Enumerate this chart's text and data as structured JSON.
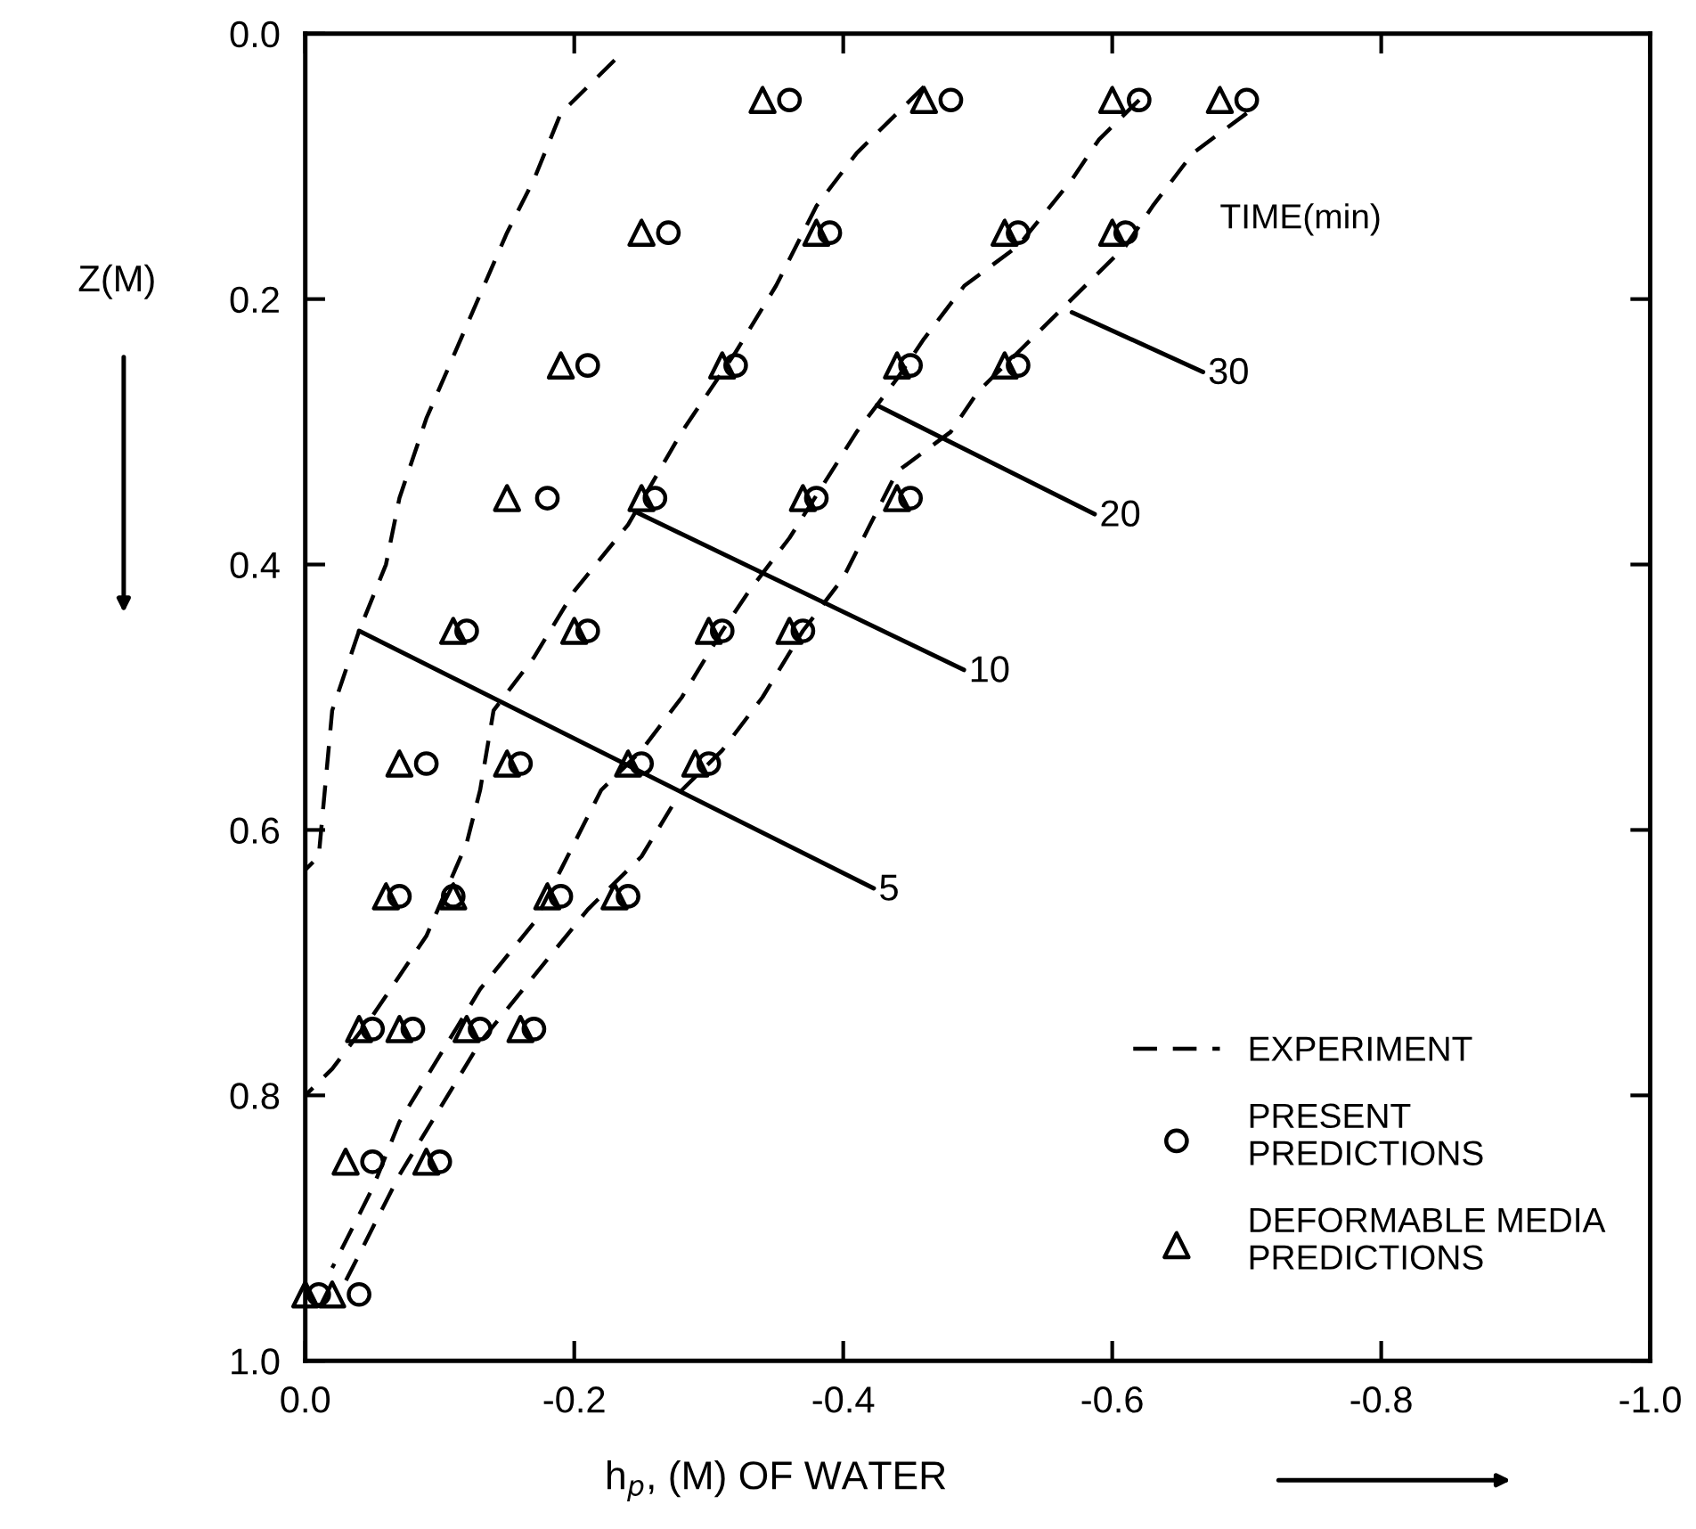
{
  "chart_data": {
    "type": "line",
    "xlabel": "h$_{p}$, (M) OF WATER",
    "ylabel": "Z(M)",
    "xlim": [
      0,
      -1.0
    ],
    "ylim": [
      1.0,
      0
    ],
    "xticks": [
      {
        "value": 0,
        "label": "0.0"
      },
      {
        "value": -0.2,
        "label": "-0.2"
      },
      {
        "value": -0.4,
        "label": "-0.4"
      },
      {
        "value": -0.6,
        "label": "-0.6"
      },
      {
        "value": -0.8,
        "label": "-0.8"
      },
      {
        "value": -1.0,
        "label": "-1.0"
      }
    ],
    "yticks": [
      {
        "value": 0,
        "label": "0.0"
      },
      {
        "value": 0.2,
        "label": "0.2"
      },
      {
        "value": 0.4,
        "label": "0.4"
      },
      {
        "value": 0.6,
        "label": "0.6"
      },
      {
        "value": 0.8,
        "label": "0.8"
      },
      {
        "value": 1.0,
        "label": "1.0"
      }
    ],
    "grid": false,
    "legend": "bottom right",
    "series": [
      {
        "name": "EXPERIMENT",
        "line_style": "dashed",
        "marker": "none",
        "color": "#000000",
        "x": [
          -0.23,
          -0.19,
          -0.17,
          -0.15,
          -0.12,
          -0.09,
          -0.07,
          -0.06,
          -0.04,
          -0.02,
          -0.01,
          0.0
        ],
        "values": [
          0.02,
          0.06,
          0.11,
          0.15,
          0.22,
          0.29,
          0.35,
          0.4,
          0.45,
          0.51,
          0.62,
          0.63
        ]
      },
      {
        "line_style": "dashed",
        "marker": "none",
        "color": "#000000",
        "x": [
          -0.46,
          -0.41,
          -0.38,
          -0.35,
          -0.32,
          -0.28,
          -0.24,
          -0.2,
          -0.17,
          -0.14,
          -0.13,
          -0.12,
          -0.09,
          -0.05,
          -0.02,
          0.0
        ],
        "values": [
          0.04,
          0.09,
          0.13,
          0.19,
          0.24,
          0.3,
          0.37,
          0.42,
          0.47,
          0.51,
          0.57,
          0.61,
          0.68,
          0.74,
          0.78,
          0.8
        ]
      },
      {
        "line_style": "dashed",
        "marker": "none",
        "color": "#000000",
        "x": [
          -0.62,
          -0.59,
          -0.57,
          -0.53,
          -0.49,
          -0.46,
          -0.44,
          -0.41,
          -0.36,
          -0.33,
          -0.31,
          -0.28,
          -0.25,
          -0.22,
          -0.19,
          -0.17,
          -0.13,
          -0.1,
          -0.07,
          -0.05,
          -0.02
        ],
        "values": [
          0.05,
          0.08,
          0.11,
          0.16,
          0.19,
          0.23,
          0.26,
          0.3,
          0.38,
          0.42,
          0.45,
          0.5,
          0.54,
          0.57,
          0.63,
          0.67,
          0.72,
          0.77,
          0.82,
          0.87,
          0.93
        ]
      },
      {
        "line_style": "dashed",
        "marker": "none",
        "color": "#000000",
        "x": [
          -0.7,
          -0.66,
          -0.63,
          -0.61,
          -0.57,
          -0.53,
          -0.5,
          -0.48,
          -0.44,
          -0.42,
          -0.4,
          -0.37,
          -0.34,
          -0.31,
          -0.28,
          -0.25,
          -0.21,
          -0.17,
          -0.13,
          -0.1,
          -0.07,
          -0.04,
          -0.03
        ],
        "values": [
          0.06,
          0.09,
          0.13,
          0.16,
          0.2,
          0.24,
          0.27,
          0.3,
          0.33,
          0.37,
          0.41,
          0.45,
          0.5,
          0.54,
          0.57,
          0.62,
          0.66,
          0.71,
          0.76,
          0.81,
          0.86,
          0.92,
          0.94
        ]
      },
      {
        "name": "PRESENT\nPREDICTIONS",
        "type": "scatter",
        "marker": "circle",
        "color": "#000000",
        "x": [
          -0.36,
          -0.48,
          -0.62,
          -0.7,
          -0.27,
          -0.39,
          -0.53,
          -0.61,
          -0.21,
          -0.32,
          -0.45,
          -0.53,
          -0.18,
          -0.26,
          -0.38,
          -0.45,
          -0.12,
          -0.21,
          -0.31,
          -0.37,
          -0.09,
          -0.16,
          -0.25,
          -0.3,
          -0.07,
          -0.11,
          -0.19,
          -0.24,
          -0.05,
          -0.08,
          -0.13,
          -0.17,
          -0.05,
          -0.1,
          -0.01,
          -0.04
        ],
        "values": [
          0.05,
          0.05,
          0.05,
          0.05,
          0.15,
          0.15,
          0.15,
          0.15,
          0.25,
          0.25,
          0.25,
          0.25,
          0.35,
          0.35,
          0.35,
          0.35,
          0.45,
          0.45,
          0.45,
          0.45,
          0.55,
          0.55,
          0.55,
          0.55,
          0.65,
          0.65,
          0.65,
          0.65,
          0.75,
          0.75,
          0.75,
          0.75,
          0.85,
          0.85,
          0.95,
          0.95
        ]
      },
      {
        "name": "DEFORMABLE MEDIA\nPREDICTIONS",
        "type": "scatter",
        "marker": "triangle",
        "color": "#000000",
        "x": [
          -0.34,
          -0.46,
          -0.6,
          -0.68,
          -0.25,
          -0.38,
          -0.52,
          -0.6,
          -0.19,
          -0.31,
          -0.44,
          -0.52,
          -0.15,
          -0.25,
          -0.37,
          -0.44,
          -0.11,
          -0.2,
          -0.3,
          -0.36,
          -0.07,
          -0.15,
          -0.24,
          -0.29,
          -0.06,
          -0.11,
          -0.18,
          -0.23,
          -0.04,
          -0.07,
          -0.12,
          -0.16,
          -0.03,
          -0.09,
          0.0,
          -0.02
        ],
        "values": [
          0.05,
          0.05,
          0.05,
          0.05,
          0.15,
          0.15,
          0.15,
          0.15,
          0.25,
          0.25,
          0.25,
          0.25,
          0.35,
          0.35,
          0.35,
          0.35,
          0.45,
          0.45,
          0.45,
          0.45,
          0.55,
          0.55,
          0.55,
          0.55,
          0.65,
          0.65,
          0.65,
          0.65,
          0.75,
          0.75,
          0.75,
          0.75,
          0.85,
          0.85,
          0.95,
          0.95
        ]
      }
    ],
    "annotations": [
      {
        "text": "5",
        "x": -0.04,
        "y": 0.45
      },
      {
        "text": "10",
        "x": -0.245,
        "y": 0.36
      },
      {
        "text": "20",
        "x": -0.425,
        "y": 0.28
      },
      {
        "text": "30",
        "x": -0.57,
        "y": 0.21
      },
      "TIME(min)"
    ]
  }
}
